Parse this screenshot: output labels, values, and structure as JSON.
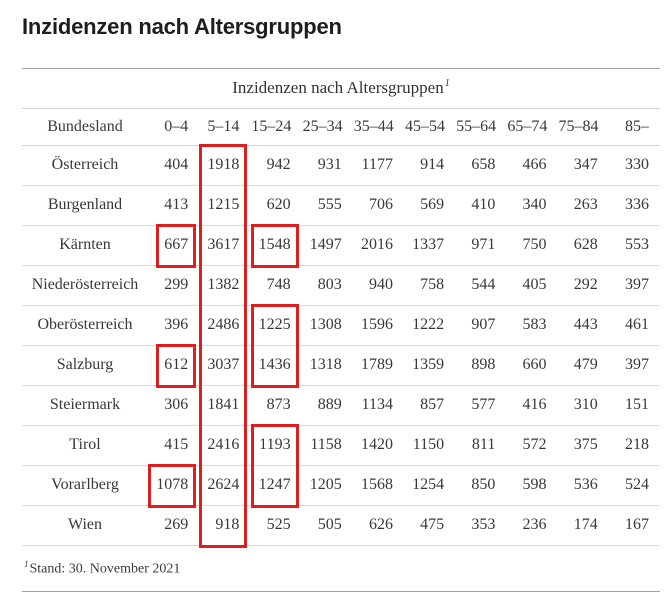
{
  "page": {
    "title": "Inzidenzen nach Altersgruppen"
  },
  "chart_data": {
    "type": "table",
    "title": "Inzidenzen nach Altersgruppen",
    "title_footnote_marker": "1",
    "row_header": "Bundesland",
    "columns": [
      "0–4",
      "5–14",
      "15–24",
      "25–34",
      "35–44",
      "45–54",
      "55–64",
      "65–74",
      "75–84",
      "85–"
    ],
    "rows": [
      {
        "name": "Österreich",
        "values": [
          404,
          1918,
          942,
          931,
          1177,
          914,
          658,
          466,
          347,
          330
        ]
      },
      {
        "name": "Burgenland",
        "values": [
          413,
          1215,
          620,
          555,
          706,
          569,
          410,
          340,
          263,
          336
        ]
      },
      {
        "name": "Kärnten",
        "values": [
          667,
          3617,
          1548,
          1497,
          2016,
          1337,
          971,
          750,
          628,
          553
        ]
      },
      {
        "name": "Niederösterreich",
        "values": [
          299,
          1382,
          748,
          803,
          940,
          758,
          544,
          405,
          292,
          397
        ]
      },
      {
        "name": "Oberösterreich",
        "values": [
          396,
          2486,
          1225,
          1308,
          1596,
          1222,
          907,
          583,
          443,
          461
        ]
      },
      {
        "name": "Salzburg",
        "values": [
          612,
          3037,
          1436,
          1318,
          1789,
          1359,
          898,
          660,
          479,
          397
        ]
      },
      {
        "name": "Steiermark",
        "values": [
          306,
          1841,
          873,
          889,
          1134,
          857,
          577,
          416,
          310,
          151
        ]
      },
      {
        "name": "Tirol",
        "values": [
          415,
          2416,
          1193,
          1158,
          1420,
          1150,
          811,
          572,
          375,
          218
        ]
      },
      {
        "name": "Vorarlberg",
        "values": [
          1078,
          2624,
          1247,
          1205,
          1568,
          1254,
          850,
          598,
          536,
          524
        ]
      },
      {
        "name": "Wien",
        "values": [
          269,
          918,
          525,
          505,
          626,
          475,
          353,
          236,
          174,
          167
        ]
      }
    ],
    "highlights": [
      {
        "column": "5–14",
        "col": 1,
        "from_row": 0,
        "to_row": 9
      },
      {
        "column": "0–4",
        "col": 0,
        "from_row": 2,
        "to_row": 2
      },
      {
        "column": "15–24",
        "col": 2,
        "from_row": 2,
        "to_row": 2
      },
      {
        "column": "15–24",
        "col": 2,
        "from_row": 4,
        "to_row": 5
      },
      {
        "column": "0–4",
        "col": 0,
        "from_row": 5,
        "to_row": 5
      },
      {
        "column": "15–24",
        "col": 2,
        "from_row": 7,
        "to_row": 8
      },
      {
        "column": "0–4",
        "col": 0,
        "from_row": 8,
        "to_row": 8
      }
    ],
    "footnote_marker": "1",
    "footnote_text": "Stand: 30. November 2021",
    "layout": {
      "highlight_color": "#dd1f1f",
      "text_color": "#383838"
    }
  }
}
